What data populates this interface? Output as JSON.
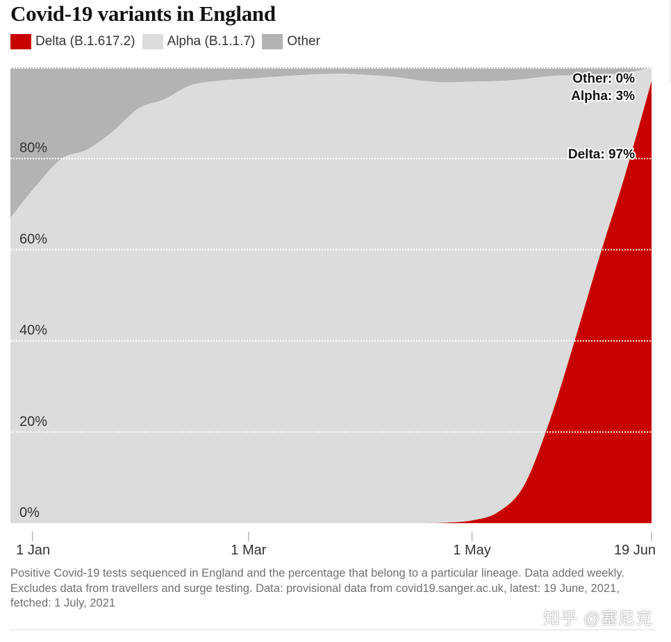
{
  "title": "Covid-19 variants in England",
  "legend": [
    {
      "label": "Delta (B.1.617.2)",
      "color": "#c70000"
    },
    {
      "label": "Alpha (B.1.1.7)",
      "color": "#dcdcdc"
    },
    {
      "label": "Other",
      "color": "#b3b3b3"
    }
  ],
  "chart_data": {
    "type": "area",
    "stacked": true,
    "normalized": true,
    "x_label": "",
    "y_label": "",
    "x": [
      "2020-12-26",
      "2021-01-02",
      "2021-01-09",
      "2021-01-16",
      "2021-01-23",
      "2021-01-30",
      "2021-02-06",
      "2021-02-13",
      "2021-02-20",
      "2021-02-27",
      "2021-03-06",
      "2021-03-13",
      "2021-03-20",
      "2021-03-27",
      "2021-04-03",
      "2021-04-10",
      "2021-04-17",
      "2021-04-24",
      "2021-05-01",
      "2021-05-08",
      "2021-05-15",
      "2021-05-22",
      "2021-05-29",
      "2021-06-05",
      "2021-06-12",
      "2021-06-19"
    ],
    "series": [
      {
        "name": "Delta (B.1.617.2)",
        "color": "#c70000",
        "values": [
          0,
          0,
          0,
          0,
          0,
          0,
          0,
          0,
          0,
          0,
          0,
          0,
          0,
          0,
          0,
          0,
          0,
          0.1,
          0.6,
          2.4,
          8,
          22,
          40,
          59,
          77,
          97
        ]
      },
      {
        "name": "Alpha (B.1.1.7)",
        "color": "#dcdcdc",
        "values": [
          67,
          74,
          80,
          82,
          86,
          91,
          93,
          96,
          97,
          97.4,
          97.8,
          98.2,
          98.5,
          98.6,
          98.3,
          97.9,
          97.1,
          96.6,
          96.3,
          94.6,
          89.4,
          76.1,
          58.3,
          39.5,
          21.8,
          3
        ]
      },
      {
        "name": "Other",
        "color": "#b3b3b3",
        "values": [
          33,
          26,
          20,
          18,
          14,
          9,
          7,
          4,
          3,
          2.6,
          2.2,
          1.8,
          1.5,
          1.4,
          1.7,
          2.1,
          2.9,
          3.3,
          3.1,
          3,
          2.6,
          1.9,
          1.7,
          1.5,
          1.2,
          0
        ]
      }
    ],
    "y_range": [
      0,
      100
    ],
    "y_ticks": [
      "0%",
      "20%",
      "40%",
      "60%",
      "80%"
    ],
    "y_tick_values": [
      0,
      20,
      40,
      60,
      80
    ],
    "x_ticks": [
      {
        "label": "1 Jan",
        "date": "2021-01-01"
      },
      {
        "label": "1 Mar",
        "date": "2021-03-01"
      },
      {
        "label": "1 May",
        "date": "2021-05-01"
      },
      {
        "label": "19 Jun",
        "date": "2021-06-19"
      }
    ],
    "grid": "horizontal dotted",
    "end_labels": [
      {
        "text": "Other: 0%",
        "value": 100
      },
      {
        "text": "Alpha: 3%",
        "value": 97
      },
      {
        "text": "Delta: 97%",
        "value": 97
      }
    ]
  },
  "caption": "Positive Covid-19 tests sequenced in England and the percentage that belong to a particular lineage. Data added weekly. Excludes data from travellers and surge testing. Data: provisional data from covid19.sanger.ac.uk, latest: 19 June, 2021, fetched: 1 July, 2021",
  "watermark": "知乎 @塞尼克"
}
